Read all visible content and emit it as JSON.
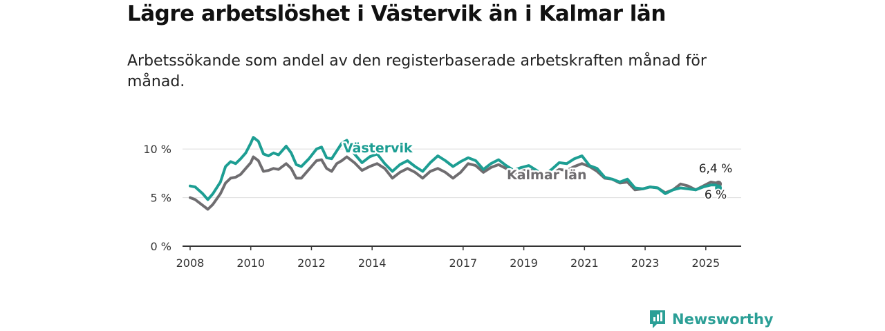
{
  "title": "Lägre arbetslöshet i Västervik än i Kalmar län",
  "subtitle": "Arbetssökande som andel av den registerbaserade arbetskraften månad för månad.",
  "brand": {
    "name": "Newsworthy"
  },
  "colors": {
    "vastervik": "#1d9e93",
    "kalmar": "#6f6d70",
    "grid": "#dddddd",
    "axis": "#333333"
  },
  "chart_data": {
    "type": "line",
    "x_ticks": [
      "2008",
      "2010",
      "2012",
      "2014",
      "2017",
      "2019",
      "2021",
      "2023",
      "2025"
    ],
    "y_ticks": [
      "0 %",
      "5 %",
      "10 %"
    ],
    "ylim": [
      0,
      11.5
    ],
    "xlim": [
      "2007-10",
      "2026-03"
    ],
    "grid": true,
    "series": [
      {
        "name": "Västervik",
        "end_label": "6 %",
        "points": [
          [
            "2008-01",
            6.2
          ],
          [
            "2008-03",
            6.1
          ],
          [
            "2008-06",
            5.4
          ],
          [
            "2008-08",
            4.8
          ],
          [
            "2008-10",
            5.4
          ],
          [
            "2009-01",
            6.6
          ],
          [
            "2009-03",
            8.2
          ],
          [
            "2009-05",
            8.7
          ],
          [
            "2009-07",
            8.5
          ],
          [
            "2009-09",
            9.0
          ],
          [
            "2009-11",
            9.6
          ],
          [
            "2010-01",
            10.6
          ],
          [
            "2010-02",
            11.2
          ],
          [
            "2010-04",
            10.8
          ],
          [
            "2010-06",
            9.5
          ],
          [
            "2010-08",
            9.3
          ],
          [
            "2010-10",
            9.6
          ],
          [
            "2010-12",
            9.4
          ],
          [
            "2011-03",
            10.3
          ],
          [
            "2011-05",
            9.6
          ],
          [
            "2011-07",
            8.4
          ],
          [
            "2011-09",
            8.2
          ],
          [
            "2011-12",
            9.0
          ],
          [
            "2012-03",
            10.0
          ],
          [
            "2012-05",
            10.2
          ],
          [
            "2012-07",
            9.1
          ],
          [
            "2012-09",
            9.0
          ],
          [
            "2012-11",
            9.8
          ],
          [
            "2013-01",
            10.6
          ],
          [
            "2013-03",
            10.9
          ],
          [
            "2013-06",
            9.5
          ],
          [
            "2013-09",
            8.6
          ],
          [
            "2013-12",
            9.2
          ],
          [
            "2014-03",
            9.5
          ],
          [
            "2014-06",
            8.5
          ],
          [
            "2014-09",
            7.7
          ],
          [
            "2014-12",
            8.4
          ],
          [
            "2015-03",
            8.8
          ],
          [
            "2015-06",
            8.2
          ],
          [
            "2015-09",
            7.7
          ],
          [
            "2015-12",
            8.6
          ],
          [
            "2016-03",
            9.3
          ],
          [
            "2016-06",
            8.8
          ],
          [
            "2016-09",
            8.2
          ],
          [
            "2016-12",
            8.7
          ],
          [
            "2017-03",
            9.1
          ],
          [
            "2017-06",
            8.8
          ],
          [
            "2017-09",
            7.9
          ],
          [
            "2017-12",
            8.5
          ],
          [
            "2018-03",
            8.9
          ],
          [
            "2018-06",
            8.3
          ],
          [
            "2018-09",
            7.8
          ],
          [
            "2018-12",
            8.1
          ],
          [
            "2019-03",
            8.3
          ],
          [
            "2019-06",
            7.8
          ],
          [
            "2019-09",
            7.3
          ],
          [
            "2019-12",
            7.9
          ],
          [
            "2020-03",
            8.6
          ],
          [
            "2020-06",
            8.5
          ],
          [
            "2020-09",
            9.0
          ],
          [
            "2020-12",
            9.3
          ],
          [
            "2021-03",
            8.3
          ],
          [
            "2021-06",
            8.0
          ],
          [
            "2021-09",
            7.1
          ],
          [
            "2021-12",
            6.9
          ],
          [
            "2022-03",
            6.6
          ],
          [
            "2022-06",
            6.9
          ],
          [
            "2022-09",
            6.0
          ],
          [
            "2022-12",
            5.9
          ],
          [
            "2023-03",
            6.1
          ],
          [
            "2023-06",
            6.0
          ],
          [
            "2023-09",
            5.4
          ],
          [
            "2023-12",
            5.8
          ],
          [
            "2024-03",
            6.0
          ],
          [
            "2024-06",
            5.9
          ],
          [
            "2024-09",
            5.8
          ],
          [
            "2024-12",
            6.1
          ],
          [
            "2025-03",
            6.3
          ],
          [
            "2025-05",
            6.3
          ],
          [
            "2025-06",
            6.0
          ]
        ]
      },
      {
        "name": "Kalmar län",
        "end_label": "6,4 %",
        "points": [
          [
            "2008-01",
            5.0
          ],
          [
            "2008-03",
            4.8
          ],
          [
            "2008-06",
            4.2
          ],
          [
            "2008-08",
            3.8
          ],
          [
            "2008-10",
            4.3
          ],
          [
            "2009-01",
            5.4
          ],
          [
            "2009-03",
            6.5
          ],
          [
            "2009-05",
            7.0
          ],
          [
            "2009-07",
            7.1
          ],
          [
            "2009-09",
            7.4
          ],
          [
            "2009-11",
            8.0
          ],
          [
            "2010-01",
            8.6
          ],
          [
            "2010-02",
            9.2
          ],
          [
            "2010-04",
            8.8
          ],
          [
            "2010-06",
            7.7
          ],
          [
            "2010-08",
            7.8
          ],
          [
            "2010-10",
            8.0
          ],
          [
            "2010-12",
            7.9
          ],
          [
            "2011-03",
            8.5
          ],
          [
            "2011-05",
            8.0
          ],
          [
            "2011-07",
            7.0
          ],
          [
            "2011-09",
            7.0
          ],
          [
            "2011-12",
            7.9
          ],
          [
            "2012-03",
            8.8
          ],
          [
            "2012-05",
            8.9
          ],
          [
            "2012-07",
            8.0
          ],
          [
            "2012-09",
            7.7
          ],
          [
            "2012-11",
            8.5
          ],
          [
            "2013-01",
            8.8
          ],
          [
            "2013-03",
            9.2
          ],
          [
            "2013-06",
            8.6
          ],
          [
            "2013-09",
            7.8
          ],
          [
            "2013-12",
            8.2
          ],
          [
            "2014-03",
            8.5
          ],
          [
            "2014-06",
            8.0
          ],
          [
            "2014-09",
            7.0
          ],
          [
            "2014-12",
            7.6
          ],
          [
            "2015-03",
            8.0
          ],
          [
            "2015-06",
            7.6
          ],
          [
            "2015-09",
            7.0
          ],
          [
            "2015-12",
            7.7
          ],
          [
            "2016-03",
            8.0
          ],
          [
            "2016-06",
            7.6
          ],
          [
            "2016-09",
            7.0
          ],
          [
            "2016-12",
            7.6
          ],
          [
            "2017-03",
            8.5
          ],
          [
            "2017-06",
            8.3
          ],
          [
            "2017-09",
            7.6
          ],
          [
            "2017-12",
            8.1
          ],
          [
            "2018-03",
            8.4
          ],
          [
            "2018-06",
            8.0
          ],
          [
            "2018-09",
            7.5
          ],
          [
            "2018-12",
            7.7
          ],
          [
            "2019-03",
            7.9
          ],
          [
            "2019-06",
            7.5
          ],
          [
            "2019-09",
            7.1
          ],
          [
            "2019-12",
            7.4
          ],
          [
            "2020-03",
            7.9
          ],
          [
            "2020-06",
            7.8
          ],
          [
            "2020-09",
            8.2
          ],
          [
            "2020-12",
            8.5
          ],
          [
            "2021-03",
            8.2
          ],
          [
            "2021-06",
            7.7
          ],
          [
            "2021-09",
            7.0
          ],
          [
            "2021-12",
            6.9
          ],
          [
            "2022-03",
            6.5
          ],
          [
            "2022-06",
            6.6
          ],
          [
            "2022-09",
            5.8
          ],
          [
            "2022-12",
            5.9
          ],
          [
            "2023-03",
            6.1
          ],
          [
            "2023-06",
            6.0
          ],
          [
            "2023-09",
            5.5
          ],
          [
            "2023-12",
            5.8
          ],
          [
            "2024-03",
            6.4
          ],
          [
            "2024-06",
            6.2
          ],
          [
            "2024-09",
            5.8
          ],
          [
            "2024-12",
            6.2
          ],
          [
            "2025-03",
            6.6
          ],
          [
            "2025-05",
            6.5
          ],
          [
            "2025-06",
            6.4
          ]
        ]
      }
    ]
  }
}
